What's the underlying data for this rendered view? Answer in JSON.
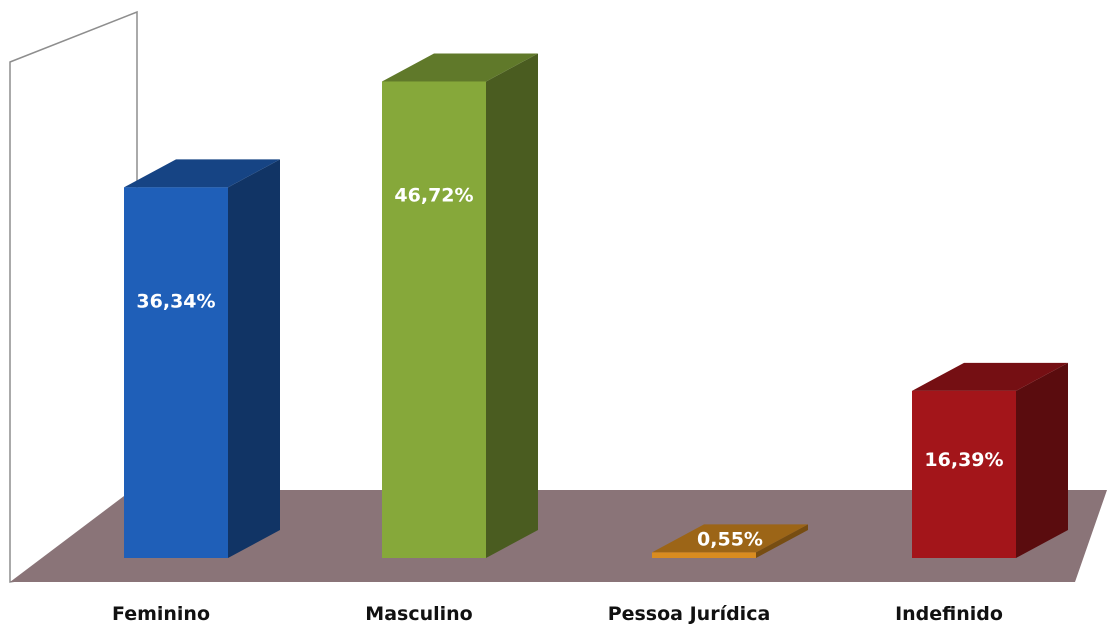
{
  "chart_data": {
    "type": "bar",
    "title": "",
    "xlabel": "",
    "ylabel": "",
    "ylim": [
      0,
      50
    ],
    "grid": false,
    "legend": "none",
    "categories": [
      "Feminino",
      "Masculino",
      "Pessoa Jurídica",
      "Indefinido"
    ],
    "values": [
      36.34,
      46.72,
      0.55,
      16.39
    ],
    "value_labels": [
      "36,34%",
      "46,72%",
      "0,55%",
      "16,39%"
    ],
    "colors": {
      "Feminino": "#1f5fb8",
      "Masculino": "#86a83a",
      "Pessoa Jurídica": "#d98c20",
      "Indefinido": "#a3151a"
    },
    "floor_color": "#8a7478"
  }
}
